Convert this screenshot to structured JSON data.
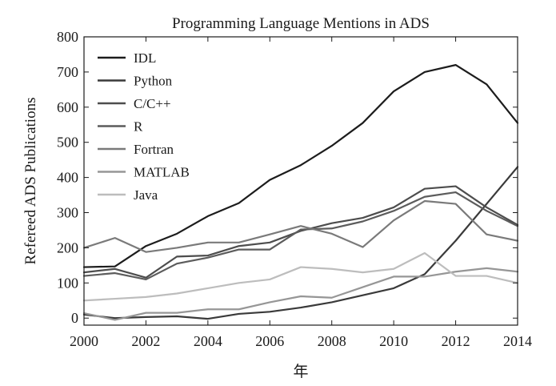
{
  "chart_data": {
    "type": "line",
    "title": "Programming Language Mentions in ADS",
    "xlabel": "年",
    "ylabel": "Refereed ADS Publications",
    "xlim": [
      2000,
      2014
    ],
    "ylim": [
      -20,
      800
    ],
    "x_ticks": [
      2000,
      2002,
      2004,
      2006,
      2008,
      2010,
      2012,
      2014
    ],
    "y_ticks": [
      0,
      100,
      200,
      300,
      400,
      500,
      600,
      700,
      800
    ],
    "x": [
      2000,
      2001,
      2002,
      2003,
      2004,
      2005,
      2006,
      2007,
      2008,
      2009,
      2010,
      2011,
      2012,
      2013,
      2014
    ],
    "legend_position": "top-left",
    "grid": false,
    "series": [
      {
        "name": "IDL",
        "color": "#1c1c1c",
        "values": [
          145,
          147,
          205,
          240,
          290,
          327,
          393,
          435,
          490,
          555,
          645,
          700,
          720,
          665,
          555
        ]
      },
      {
        "name": "Python",
        "color": "#3a3a3a",
        "values": [
          10,
          0,
          3,
          5,
          -2,
          12,
          18,
          30,
          45,
          65,
          85,
          125,
          220,
          325,
          430
        ]
      },
      {
        "name": "C/C++",
        "color": "#4d4d4d",
        "values": [
          130,
          140,
          115,
          175,
          178,
          205,
          215,
          248,
          270,
          285,
          315,
          368,
          375,
          315,
          265
        ]
      },
      {
        "name": "R",
        "color": "#5c5c5c",
        "values": [
          120,
          128,
          110,
          155,
          172,
          195,
          195,
          252,
          255,
          275,
          305,
          345,
          358,
          305,
          262
        ]
      },
      {
        "name": "Fortran",
        "color": "#7a7a7a",
        "values": [
          200,
          228,
          188,
          200,
          215,
          215,
          238,
          262,
          240,
          202,
          278,
          333,
          325,
          238,
          220
        ]
      },
      {
        "name": "MATLAB",
        "color": "#969696",
        "values": [
          14,
          -5,
          15,
          15,
          25,
          25,
          45,
          62,
          58,
          88,
          118,
          118,
          132,
          142,
          132
        ]
      },
      {
        "name": "Java",
        "color": "#bdbdbd",
        "values": [
          50,
          55,
          60,
          70,
          85,
          100,
          110,
          145,
          140,
          130,
          140,
          185,
          120,
          120,
          100
        ]
      }
    ]
  }
}
